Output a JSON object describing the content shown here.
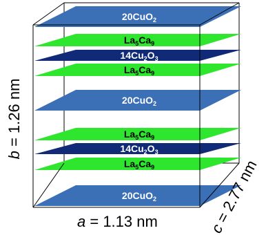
{
  "layers": [
    {
      "kind": "cuo2",
      "formula": [
        "20CuO",
        "2"
      ]
    },
    {
      "kind": "ca",
      "formula": [
        "La",
        "5",
        "Ca",
        "9"
      ]
    },
    {
      "kind": "cu2o3",
      "formula": [
        "14Cu",
        "2",
        "O",
        "3"
      ]
    },
    {
      "kind": "ca",
      "formula": [
        "La",
        "5",
        "Ca",
        "9"
      ]
    },
    {
      "kind": "cuo2",
      "formula": [
        "20CuO",
        "2"
      ]
    },
    {
      "kind": "ca",
      "formula": [
        "La",
        "5",
        "Ca",
        "9"
      ]
    },
    {
      "kind": "cu2o3",
      "formula": [
        "14Cu",
        "2",
        "O",
        "3"
      ]
    },
    {
      "kind": "ca",
      "formula": [
        "La",
        "5",
        "Ca",
        "9"
      ]
    },
    {
      "kind": "cuo2",
      "formula": [
        "20CuO",
        "2"
      ]
    }
  ],
  "dimensions": {
    "a": {
      "symbol": "a",
      "value": " = 1.13 nm"
    },
    "b": {
      "symbol": "b",
      "value": " = 1.26 nm"
    },
    "c": {
      "symbol": "c",
      "value": " = 2.77 nm"
    }
  },
  "colors": {
    "cuo2": "#3b6fb6",
    "ca": "#2ee62e",
    "cu2o3": "#102a78",
    "cuo2_text": "#ffffff",
    "ca_text": "#000000",
    "cu2o3_text": "#ffffff",
    "frame": "#000000"
  }
}
